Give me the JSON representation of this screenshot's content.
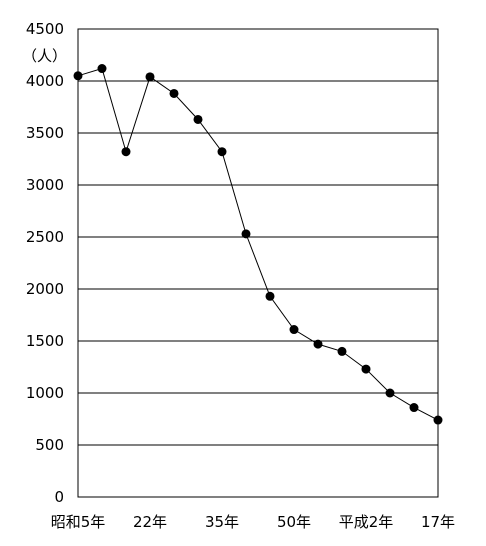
{
  "chart_data": {
    "type": "line",
    "title": "",
    "xlabel": "",
    "ylabel": "",
    "unit_label": "（人）",
    "ylim": [
      0,
      4500
    ],
    "yticks": [
      0,
      500,
      1000,
      1500,
      2000,
      2500,
      3000,
      3500,
      4000,
      4500
    ],
    "ytick_labels": [
      "0",
      "500",
      "1000",
      "1500",
      "2000",
      "2500",
      "3000",
      "3500",
      "4000",
      "4500"
    ],
    "grid": "horizontal",
    "legend": "none",
    "x_tick_labels": [
      {
        "index": 0,
        "label": "昭和5年"
      },
      {
        "index": 3,
        "label": "22年"
      },
      {
        "index": 6,
        "label": "35年"
      },
      {
        "index": 9,
        "label": "50年"
      },
      {
        "index": 12,
        "label": "平成2年"
      },
      {
        "index": 15,
        "label": "17年"
      }
    ],
    "series": [
      {
        "color": "#000000",
        "values": [
          4050,
          4120,
          3320,
          4040,
          3880,
          3630,
          3320,
          2530,
          1930,
          1610,
          1470,
          1400,
          1230,
          1000,
          860,
          740
        ]
      }
    ]
  }
}
